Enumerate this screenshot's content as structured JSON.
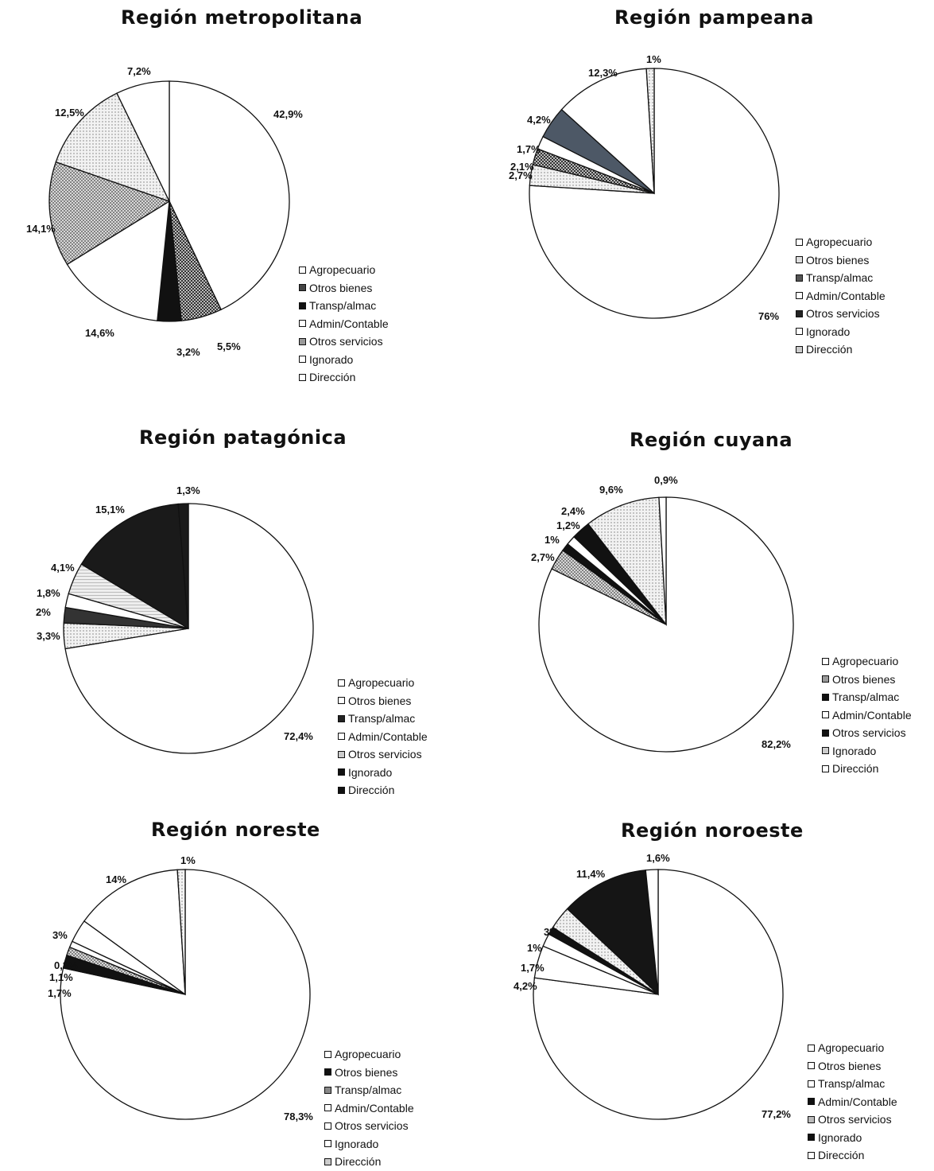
{
  "chart_data": [
    {
      "type": "pie",
      "title": "Región metropolitana",
      "slices": [
        {
          "label": "Agropecuario",
          "value": 42.9,
          "text": "42,9%"
        },
        {
          "label": "Otros bienes",
          "value": 5.5,
          "text": "5,5%"
        },
        {
          "label": "Transp/almac",
          "value": 3.2,
          "text": "3,2%"
        },
        {
          "label": "Admin/Contable",
          "value": 14.6,
          "text": "14,6%"
        },
        {
          "label": "Otros servicios",
          "value": 14.1,
          "text": "14,1%"
        },
        {
          "label": "Ignorado",
          "value": 12.5,
          "text": "12,5%"
        },
        {
          "label": "Dirección",
          "value": 7.2,
          "text": "7,2%"
        }
      ],
      "legend": [
        "Agropecuario",
        "Otros bienes",
        "Transp/almac",
        "Admin/Contable",
        "Otros servicios",
        "Ignorado",
        "Dirección"
      ],
      "legend_swatches": [
        "#ffffff",
        "#444444",
        "#111111",
        "#ffffff",
        "#9a9a9a",
        "#ffffff",
        "#ffffff"
      ]
    },
    {
      "type": "pie",
      "title": "Región pampeana",
      "slices": [
        {
          "label": "Agropecuario",
          "value": 76,
          "text": "76%"
        },
        {
          "label": "Otros bienes",
          "value": 2.7,
          "text": "2,7%"
        },
        {
          "label": "Transp/almac",
          "value": 2.1,
          "text": "2,1%"
        },
        {
          "label": "Admin/Contable",
          "value": 1.7,
          "text": "1,7%"
        },
        {
          "label": "Otros servicios",
          "value": 4.2,
          "text": "4,2%"
        },
        {
          "label": "Ignorado",
          "value": 12.3,
          "text": "12,3%"
        },
        {
          "label": "Dirección",
          "value": 1,
          "text": "1%"
        }
      ],
      "legend": [
        "Agropecuario",
        "Otros bienes",
        "Transp/almac",
        "Admin/Contable",
        "Otros servicios",
        "Ignorado",
        "Dirección"
      ],
      "legend_swatches": [
        "#ffffff",
        "#dddddd",
        "#555555",
        "#ffffff",
        "#222222",
        "#ffffff",
        "#cccccc"
      ]
    },
    {
      "type": "pie",
      "title": "Región patagónica",
      "slices": [
        {
          "label": "Agropecuario",
          "value": 72.4,
          "text": "72,4%"
        },
        {
          "label": "Otros bienes",
          "value": 3.3,
          "text": "3,3%"
        },
        {
          "label": "Transp/almac",
          "value": 2,
          "text": "2%"
        },
        {
          "label": "Admin/Contable",
          "value": 1.8,
          "text": "1,8%"
        },
        {
          "label": "Otros servicios",
          "value": 4.1,
          "text": "4,1%"
        },
        {
          "label": "Ignorado",
          "value": 15.1,
          "text": "15,1%"
        },
        {
          "label": "Dirección",
          "value": 1.3,
          "text": "1,3%"
        }
      ],
      "legend": [
        "Agropecuario",
        "Otros bienes",
        "Transp/almac",
        "Admin/Contable",
        "Otros servicios",
        "Ignorado",
        "Dirección"
      ],
      "legend_swatches": [
        "#ffffff",
        "#ffffff",
        "#222222",
        "#ffffff",
        "#cccccc",
        "#111111",
        "#111111"
      ]
    },
    {
      "type": "pie",
      "title": "Región cuyana",
      "slices": [
        {
          "label": "Agropecuario",
          "value": 82.2,
          "text": "82,2%"
        },
        {
          "label": "Otros bienes",
          "value": 2.7,
          "text": "2,7%"
        },
        {
          "label": "Transp/almac",
          "value": 1,
          "text": "1%"
        },
        {
          "label": "Admin/Contable",
          "value": 1.2,
          "text": "1,2%"
        },
        {
          "label": "Otros servicios",
          "value": 2.4,
          "text": "2,4%"
        },
        {
          "label": "Ignorado",
          "value": 9.6,
          "text": "9,6%"
        },
        {
          "label": "Dirección",
          "value": 0.9,
          "text": "0,9%"
        }
      ],
      "legend": [
        "Agropecuario",
        "Otros bienes",
        "Transp/almac",
        "Admin/Contable",
        "Otros servicios",
        "Ignorado",
        "Dirección"
      ],
      "legend_swatches": [
        "#ffffff",
        "#999999",
        "#111111",
        "#ffffff",
        "#111111",
        "#cccccc",
        "#ffffff"
      ]
    },
    {
      "type": "pie",
      "title": "Región noreste",
      "slices": [
        {
          "label": "Agropecuario",
          "value": 78.3,
          "text": "78,3%"
        },
        {
          "label": "Otros bienes",
          "value": 1.7,
          "text": "1,7%"
        },
        {
          "label": "Transp/almac",
          "value": 1.1,
          "text": "1,1%"
        },
        {
          "label": "Admin/Contable",
          "value": 0.8,
          "text": "0,8%"
        },
        {
          "label": "Otros servicios",
          "value": 3,
          "text": "3%"
        },
        {
          "label": "Ignorado",
          "value": 14,
          "text": "14%"
        },
        {
          "label": "Dirección",
          "value": 1,
          "text": "1%"
        }
      ],
      "legend": [
        "Agropecuario",
        "Otros bienes",
        "Transp/almac",
        "Admin/Contable",
        "Otros servicios",
        "Ignorado",
        "Dirección"
      ],
      "legend_swatches": [
        "#ffffff",
        "#111111",
        "#888888",
        "#ffffff",
        "#ffffff",
        "#ffffff",
        "#cccccc"
      ]
    },
    {
      "type": "pie",
      "title": "Región noroeste",
      "slices": [
        {
          "label": "Agropecuario",
          "value": 77.2,
          "text": "77,2%"
        },
        {
          "label": "Otros bienes",
          "value": 4.2,
          "text": "4,2%"
        },
        {
          "label": "Transp/almac",
          "value": 1.7,
          "text": "1,7%"
        },
        {
          "label": "Admin/Contable",
          "value": 1,
          "text": "1%"
        },
        {
          "label": "Otros servicios",
          "value": 3,
          "text": "3%"
        },
        {
          "label": "Ignorado",
          "value": 11.4,
          "text": "11,4%"
        },
        {
          "label": "Dirección",
          "value": 1.6,
          "text": "1,6%"
        }
      ],
      "legend": [
        "Agropecuario",
        "Otros bienes",
        "Transp/almac",
        "Admin/Contable",
        "Otros servicios",
        "Ignorado",
        "Dirección"
      ],
      "legend_swatches": [
        "#ffffff",
        "#ffffff",
        "#ffffff",
        "#111111",
        "#bbbbbb",
        "#111111",
        "#ffffff"
      ]
    }
  ]
}
